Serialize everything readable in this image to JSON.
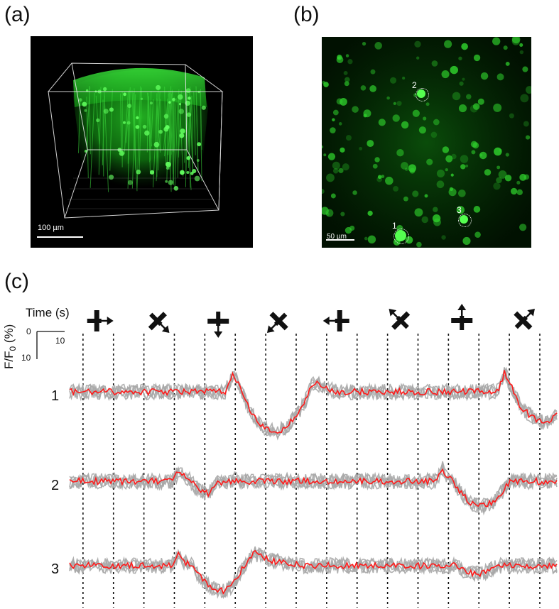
{
  "panels": {
    "a": {
      "label": "(a)",
      "scale_label": "100 µm"
    },
    "b": {
      "label": "(b)",
      "scale_label": "50 µm",
      "rois": [
        "2",
        "3",
        "1"
      ]
    },
    "c": {
      "label": "(c)"
    }
  },
  "scale_bar": {
    "time_label": "Time (s)",
    "ylabel_main": "F/F",
    "ylabel_sub": "0",
    "ylabel_unit": " (%)",
    "x_ticks": [
      "0",
      "10"
    ],
    "y_ticks": [
      "0",
      "10"
    ]
  },
  "stimuli": [
    {
      "name": "bar-right",
      "glyph": "right"
    },
    {
      "name": "diag-down-right",
      "glyph": "down-right"
    },
    {
      "name": "bar-down",
      "glyph": "down"
    },
    {
      "name": "diag-down-left",
      "glyph": "down-left"
    },
    {
      "name": "bar-left",
      "glyph": "left"
    },
    {
      "name": "diag-up-left",
      "glyph": "up-left"
    },
    {
      "name": "bar-up",
      "glyph": "up"
    },
    {
      "name": "diag-up-right",
      "glyph": "up-right"
    }
  ],
  "chart_data": {
    "type": "line",
    "traces": [
      {
        "label": "1",
        "mean_color": "#ff1a1a",
        "trial_color": "#a8a8a8",
        "events": [
          {
            "t": 0.337,
            "amp": 3.6,
            "dir": "up",
            "w": 0.018
          },
          {
            "t": 0.345,
            "amp": -8.0,
            "dir": "down",
            "w": 0.05
          },
          {
            "t": 0.505,
            "amp": 2.0,
            "dir": "up",
            "w": 0.02
          },
          {
            "t": 0.893,
            "amp": 4.0,
            "dir": "up",
            "w": 0.015
          },
          {
            "t": 0.905,
            "amp": -6.0,
            "dir": "down",
            "w": 0.045
          }
        ]
      },
      {
        "label": "2",
        "mean_color": "#ff1a1a",
        "trial_color": "#a8a8a8",
        "events": [
          {
            "t": 0.225,
            "amp": 2.0,
            "dir": "up",
            "w": 0.015
          },
          {
            "t": 0.245,
            "amp": -2.6,
            "dir": "down",
            "w": 0.03
          },
          {
            "t": 0.305,
            "amp": 2.2,
            "dir": "up",
            "w": 0.02
          },
          {
            "t": 0.765,
            "amp": 2.6,
            "dir": "up",
            "w": 0.014
          },
          {
            "t": 0.785,
            "amp": -5.0,
            "dir": "down",
            "w": 0.04
          }
        ]
      },
      {
        "label": "3",
        "mean_color": "#ff1a1a",
        "trial_color": "#a8a8a8",
        "events": [
          {
            "t": 0.223,
            "amp": 2.2,
            "dir": "up",
            "w": 0.015
          },
          {
            "t": 0.25,
            "amp": -5.0,
            "dir": "down",
            "w": 0.04
          },
          {
            "t": 0.38,
            "amp": 2.5,
            "dir": "up",
            "w": 0.05
          },
          {
            "t": 0.79,
            "amp": -1.6,
            "dir": "down",
            "w": 0.03
          }
        ]
      }
    ]
  },
  "colors": {
    "dash": "#111111",
    "fluor": "#22c21e"
  }
}
